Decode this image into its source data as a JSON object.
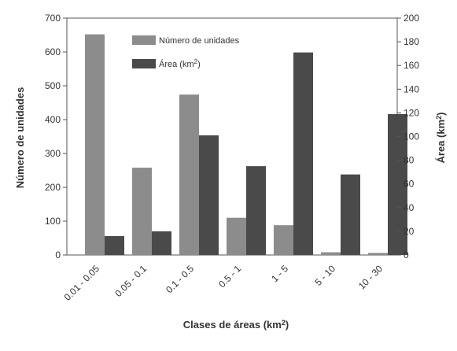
{
  "chart_data": {
    "type": "bar",
    "categories": [
      "0.01 - 0.05",
      "0.05 - 0.1",
      "0.1 - 0.5",
      "0.5 - 1",
      "1 - 5",
      "5 - 10",
      "10 - 30"
    ],
    "series": [
      {
        "name": "Número de unidades",
        "axis": "left",
        "color": "#8c8c8c",
        "values": [
          652,
          258,
          474,
          110,
          88,
          8,
          6
        ]
      },
      {
        "name": "Área (km2)",
        "legend_base": "Área (km",
        "legend_sup": "2",
        "legend_close": ")",
        "axis": "right",
        "color": "#4a4a4a",
        "values": [
          16,
          20,
          101,
          75,
          171,
          68,
          119
        ]
      }
    ],
    "xlabel": "Clases de áreas (km2)",
    "xlabel_base": "Clases de áreas (km",
    "xlabel_sup": "2",
    "xlabel_close": ")",
    "ylabel_left": "Número de unidades",
    "ylabel_right": "Área (km2)",
    "ylabel_right_base": "Área (km",
    "ylabel_right_sup": "2",
    "ylabel_right_close": ")",
    "ylim_left": [
      0,
      700
    ],
    "yticks_left": [
      "0",
      "100",
      "200",
      "300",
      "400",
      "500",
      "600",
      "700"
    ],
    "ylim_right": [
      0,
      200
    ],
    "yticks_right": [
      "0",
      "20",
      "40",
      "60",
      "80",
      "100",
      "120",
      "140",
      "160",
      "180",
      "200"
    ],
    "grid": false,
    "legend_position": "top-center"
  }
}
